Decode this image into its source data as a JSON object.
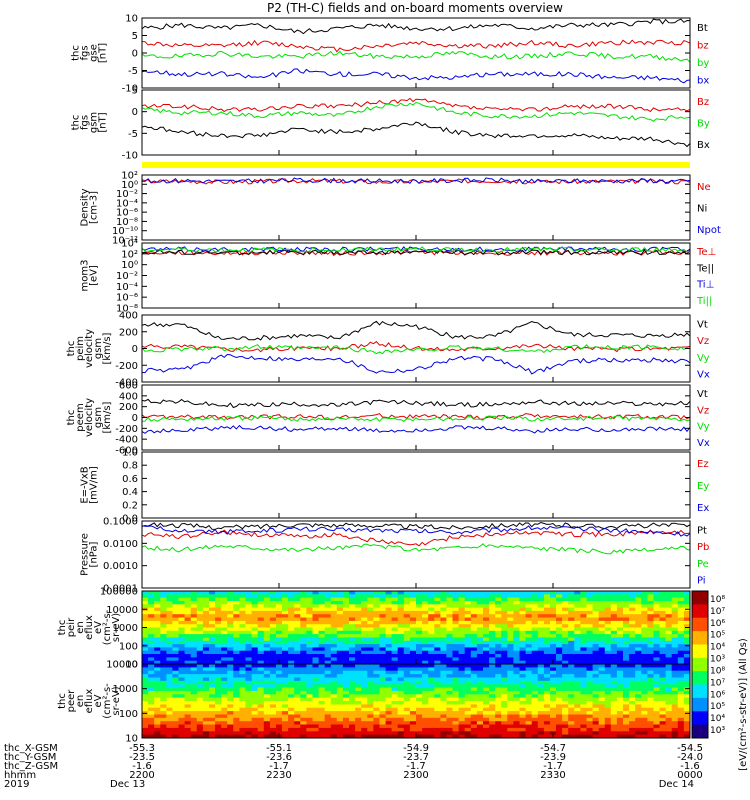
{
  "title": "P2 (TH-C) fields and on-board moments overview",
  "colors": {
    "black": "#000000",
    "red": "#e00000",
    "green": "#00e000",
    "blue": "#0000e0",
    "yellow": "#ffff00"
  },
  "chart_data": [
    {
      "type": "line",
      "ylabel": [
        "thc",
        "fgs",
        "gse",
        "[nT]"
      ],
      "yticks": [
        "10",
        "5",
        "0",
        "-5",
        "-10"
      ],
      "ylim": [
        -10,
        10
      ],
      "series": [
        {
          "name": "Bt",
          "color": "black",
          "values": [
            7,
            8,
            7,
            8,
            6,
            7,
            8,
            7,
            7,
            8,
            7,
            8,
            8,
            9,
            9
          ]
        },
        {
          "name": "bz",
          "color": "red",
          "values": [
            3,
            2,
            2,
            3,
            2,
            1,
            2,
            3,
            2,
            2,
            3,
            2,
            3,
            3,
            3
          ]
        },
        {
          "name": "by",
          "color": "green",
          "values": [
            -1,
            -1,
            0,
            -1,
            -1,
            0,
            -1,
            -1,
            0,
            -1,
            -1,
            0,
            -1,
            -1,
            -2
          ]
        },
        {
          "name": "bx",
          "color": "blue",
          "values": [
            -5,
            -6,
            -6,
            -7,
            -5,
            -6,
            -6,
            -7,
            -7,
            -6,
            -6,
            -6,
            -7,
            -7,
            -8
          ]
        }
      ]
    },
    {
      "type": "line",
      "ylabel": [
        "thc",
        "fgs",
        "gsm",
        "[nT]"
      ],
      "yticks": [
        "5",
        "0",
        "-5",
        "-10"
      ],
      "ylim": [
        -12,
        8
      ],
      "series": [
        {
          "name": "Bz",
          "color": "red",
          "values": [
            3,
            3,
            2,
            2,
            3,
            3,
            4,
            5,
            3,
            2,
            2,
            3,
            3,
            2,
            2
          ]
        },
        {
          "name": "By",
          "color": "green",
          "values": [
            2,
            1,
            1,
            0,
            1,
            0,
            3,
            4,
            1,
            0,
            0,
            1,
            0,
            -1,
            0
          ]
        },
        {
          "name": "Bx",
          "color": "black",
          "values": [
            -3,
            -5,
            -6,
            -6,
            -4,
            -5,
            -4,
            -2,
            -5,
            -6,
            -6,
            -6,
            -7,
            -7,
            -9
          ]
        }
      ]
    },
    {
      "type": "line",
      "ylabel": [
        "Density",
        "[cm-3]"
      ],
      "yticks": [
        "10²",
        "10⁰",
        "10⁻²",
        "10⁻⁴",
        "10⁻⁶",
        "10⁻⁸",
        "10⁻¹⁰",
        "10⁻¹²"
      ],
      "ylim": [
        -12,
        2
      ],
      "log": true,
      "series": [
        {
          "name": "Ne",
          "color": "red",
          "values": [
            0.6,
            0.7,
            0.5,
            0.6,
            0.8,
            0.7,
            0.5,
            0.6,
            0.7,
            0.8,
            0.5,
            0.6,
            0.6,
            0.7,
            0.5
          ]
        },
        {
          "name": "Ni",
          "color": "black",
          "values": []
        },
        {
          "name": "Npot",
          "color": "blue",
          "values": [
            0.7,
            0.8,
            0.6,
            0.7,
            0.9,
            0.8,
            0.7,
            0.7,
            0.8,
            0.9,
            0.6,
            0.7,
            0.7,
            0.8,
            0.6
          ]
        }
      ]
    },
    {
      "type": "line",
      "ylabel": [
        "mom3",
        "[eV]"
      ],
      "yticks": [
        "10⁴",
        "10²",
        "10⁰",
        "10⁻²",
        "10⁻⁴",
        "10⁻⁶",
        "10⁻⁸"
      ],
      "ylim": [
        -9,
        5
      ],
      "log": true,
      "series": [
        {
          "name": "Te⊥",
          "color": "red",
          "values": [
            2.9,
            2.9,
            2.8,
            2.9,
            2.9,
            2.8,
            2.9,
            3.0,
            2.9,
            2.8,
            2.9,
            2.9,
            2.8,
            2.9,
            2.9
          ]
        },
        {
          "name": "Te||",
          "color": "black",
          "values": [
            3.0,
            3.0,
            2.9,
            3.0,
            3.0,
            2.9,
            3.0,
            3.1,
            3.0,
            2.9,
            3.0,
            3.0,
            2.9,
            3.0,
            3.0
          ]
        },
        {
          "name": "Ti⊥",
          "color": "blue",
          "values": [
            3.6,
            3.7,
            3.6,
            3.6,
            3.7,
            3.6,
            3.7,
            3.8,
            3.7,
            3.6,
            3.7,
            3.7,
            3.6,
            3.7,
            3.6
          ]
        },
        {
          "name": "Ti||",
          "color": "green",
          "values": [
            3.5,
            3.6,
            3.5,
            3.5,
            3.6,
            3.5,
            3.6,
            3.7,
            3.6,
            3.5,
            3.6,
            3.6,
            3.5,
            3.6,
            3.5
          ]
        }
      ]
    },
    {
      "type": "line",
      "ylabel": [
        "thc",
        "peim",
        "velocity",
        "gsm",
        "[km/s]"
      ],
      "yticks": [
        "400",
        "200",
        "0",
        "-200",
        "-400"
      ],
      "ylim": [
        -420,
        420
      ],
      "series": [
        {
          "name": "Vt",
          "color": "black",
          "values": [
            300,
            300,
            120,
            130,
            160,
            130,
            320,
            280,
            140,
            150,
            320,
            170,
            170,
            160,
            180
          ]
        },
        {
          "name": "Vz",
          "color": "red",
          "values": [
            20,
            30,
            0,
            -20,
            10,
            0,
            60,
            0,
            -10,
            10,
            40,
            0,
            -10,
            0,
            10
          ]
        },
        {
          "name": "Vy",
          "color": "green",
          "values": [
            -20,
            -10,
            0,
            20,
            0,
            10,
            -40,
            -20,
            10,
            0,
            -40,
            20,
            10,
            20,
            0
          ]
        },
        {
          "name": "Vx",
          "color": "blue",
          "values": [
            -280,
            -270,
            -100,
            -110,
            -140,
            -110,
            -290,
            -260,
            -120,
            -130,
            -300,
            -150,
            -150,
            -140,
            -160
          ]
        }
      ]
    },
    {
      "type": "line",
      "ylabel": [
        "thc",
        "peem",
        "velocity",
        "gsm",
        "[km/s]"
      ],
      "yticks": [
        "600",
        "400",
        "200",
        "0",
        "-200",
        "-400",
        "-600"
      ],
      "ylim": [
        -620,
        620
      ],
      "series": [
        {
          "name": "Vt",
          "color": "black",
          "values": [
            320,
            300,
            230,
            240,
            260,
            230,
            300,
            280,
            240,
            250,
            300,
            260,
            270,
            260,
            270
          ]
        },
        {
          "name": "Vz",
          "color": "red",
          "values": [
            20,
            10,
            0,
            10,
            20,
            0,
            30,
            20,
            10,
            0,
            40,
            10,
            20,
            10,
            0
          ]
        },
        {
          "name": "Vy",
          "color": "green",
          "values": [
            -40,
            -30,
            -20,
            -10,
            -30,
            -20,
            -40,
            -30,
            -20,
            -10,
            -30,
            -20,
            -10,
            -20,
            -30
          ]
        },
        {
          "name": "Vx",
          "color": "blue",
          "values": [
            -260,
            -250,
            -190,
            -200,
            -230,
            -200,
            -260,
            -240,
            -200,
            -210,
            -260,
            -220,
            -230,
            -220,
            -230
          ]
        }
      ]
    },
    {
      "type": "line",
      "ylabel": [
        "E=-VxB",
        "[mV/m]"
      ],
      "yticks": [
        "1.0",
        "0.8",
        "0.6",
        "0.4",
        "0.2",
        "0.0"
      ],
      "ylim": [
        0,
        1
      ],
      "series": [
        {
          "name": "Ez",
          "color": "red",
          "values": []
        },
        {
          "name": "Ey",
          "color": "green",
          "values": []
        },
        {
          "name": "Ex",
          "color": "blue",
          "values": []
        }
      ]
    },
    {
      "type": "line",
      "ylabel": [
        "Pressure",
        "[nPa]"
      ],
      "yticks": [
        "0.1000",
        "0.0100",
        "0.0010",
        "0.0001"
      ],
      "ylim": [
        -4,
        -1
      ],
      "log": true,
      "series": [
        {
          "name": "Pt",
          "color": "black",
          "values": [
            -1.15,
            -1.2,
            -1.3,
            -1.25,
            -1.15,
            -1.2,
            -1.2,
            -1.25,
            -1.3,
            -1.2,
            -1.15,
            -1.2,
            -1.25,
            -1.2,
            -1.2
          ]
        },
        {
          "name": "Pb",
          "color": "red",
          "values": [
            -1.6,
            -1.7,
            -1.5,
            -1.6,
            -1.7,
            -1.6,
            -1.9,
            -2.1,
            -1.7,
            -1.6,
            -1.5,
            -1.6,
            -1.6,
            -1.5,
            -1.5
          ]
        },
        {
          "name": "Pe",
          "color": "green",
          "values": [
            -2.2,
            -2.3,
            -2.1,
            -2.2,
            -2.3,
            -2.2,
            -2.1,
            -2.3,
            -2.2,
            -2.1,
            -2.2,
            -2.3,
            -2.4,
            -2.3,
            -2.2
          ]
        },
        {
          "name": "Pi",
          "color": "blue",
          "values": [
            -1.3,
            -1.4,
            -1.5,
            -1.45,
            -1.35,
            -1.4,
            -1.4,
            -1.45,
            -1.5,
            -1.4,
            -1.3,
            -1.35,
            -1.4,
            -1.5,
            -1.6
          ]
        }
      ]
    },
    {
      "type": "heatmap",
      "ylabel": [
        "thc",
        "peir",
        "en",
        "eflux",
        "eV",
        "(cm²-s-",
        "sr-eV)"
      ],
      "yticks": [
        "100000",
        "10000",
        "1000",
        "100",
        "10"
      ],
      "ylim": [
        1,
        5
      ],
      "log": true
    },
    {
      "type": "heatmap",
      "ylabel": [
        "thc",
        "peer",
        "en",
        "eflux",
        "eV",
        "(cm²-s-",
        "sr-eV)"
      ],
      "yticks": [
        "10000",
        "1000",
        "100",
        "10"
      ],
      "ylim": [
        0.8,
        4.5
      ],
      "log": true
    }
  ],
  "colorbar": {
    "ticks": [
      "10⁸",
      "10⁷",
      "10⁶",
      "10⁵",
      "10⁴",
      "10³",
      "10⁸",
      "10⁷",
      "10⁶",
      "10⁵",
      "10⁴",
      "10³"
    ],
    "label": "[eV/(cm²-s-str-eV)] (All Qs)"
  },
  "xaxis": {
    "row_labels": [
      "thc_X-GSM",
      "thc_Y-GSM",
      "thc_Z-GSM",
      "hhmm",
      "2019"
    ],
    "ticks": [
      {
        "rows": [
          "-55.3",
          "-23.5",
          "-1.6",
          "2200",
          "Dec 13"
        ]
      },
      {
        "rows": [
          "-55.1",
          "-23.6",
          "-1.7",
          "2230",
          ""
        ]
      },
      {
        "rows": [
          "-54.9",
          "-23.7",
          "-1.7",
          "2300",
          ""
        ]
      },
      {
        "rows": [
          "-54.7",
          "-23.9",
          "-1.7",
          "2330",
          ""
        ]
      },
      {
        "rows": [
          "-54.5",
          "-24.0",
          "-1.6",
          "0000",
          "Dec 14"
        ]
      }
    ]
  }
}
